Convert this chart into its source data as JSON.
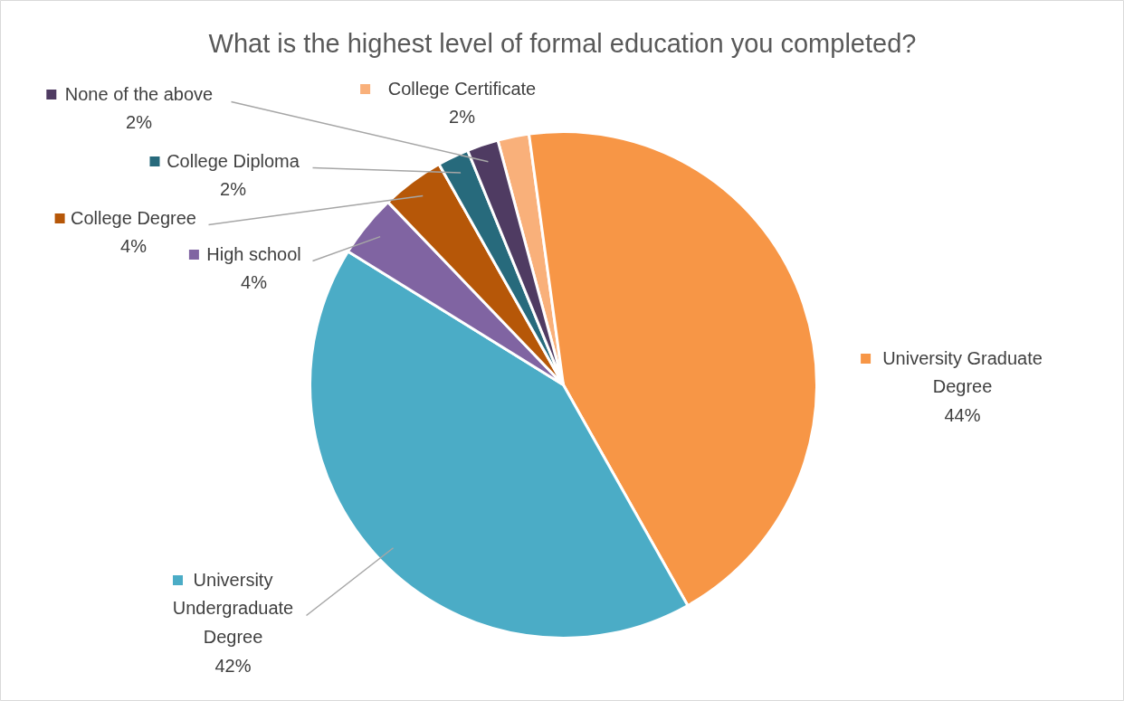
{
  "chart_data": {
    "type": "pie",
    "title": "What is the highest level of formal education you completed?",
    "categories": [
      "College Certificate",
      "University Graduate Degree",
      "University Undergraduate Degree",
      "High school",
      "College Degree",
      "College Diploma",
      "None of the above"
    ],
    "values": [
      2,
      44,
      42,
      4,
      4,
      2,
      2
    ],
    "colors": [
      "#f9b07a",
      "#f79646",
      "#4bacc6",
      "#8064a2",
      "#b65708",
      "#276a7c",
      "#4f3b62"
    ],
    "value_labels": [
      "2%",
      "44%",
      "42%",
      "4%",
      "4%",
      "2%",
      "2%"
    ],
    "legend": "left"
  }
}
